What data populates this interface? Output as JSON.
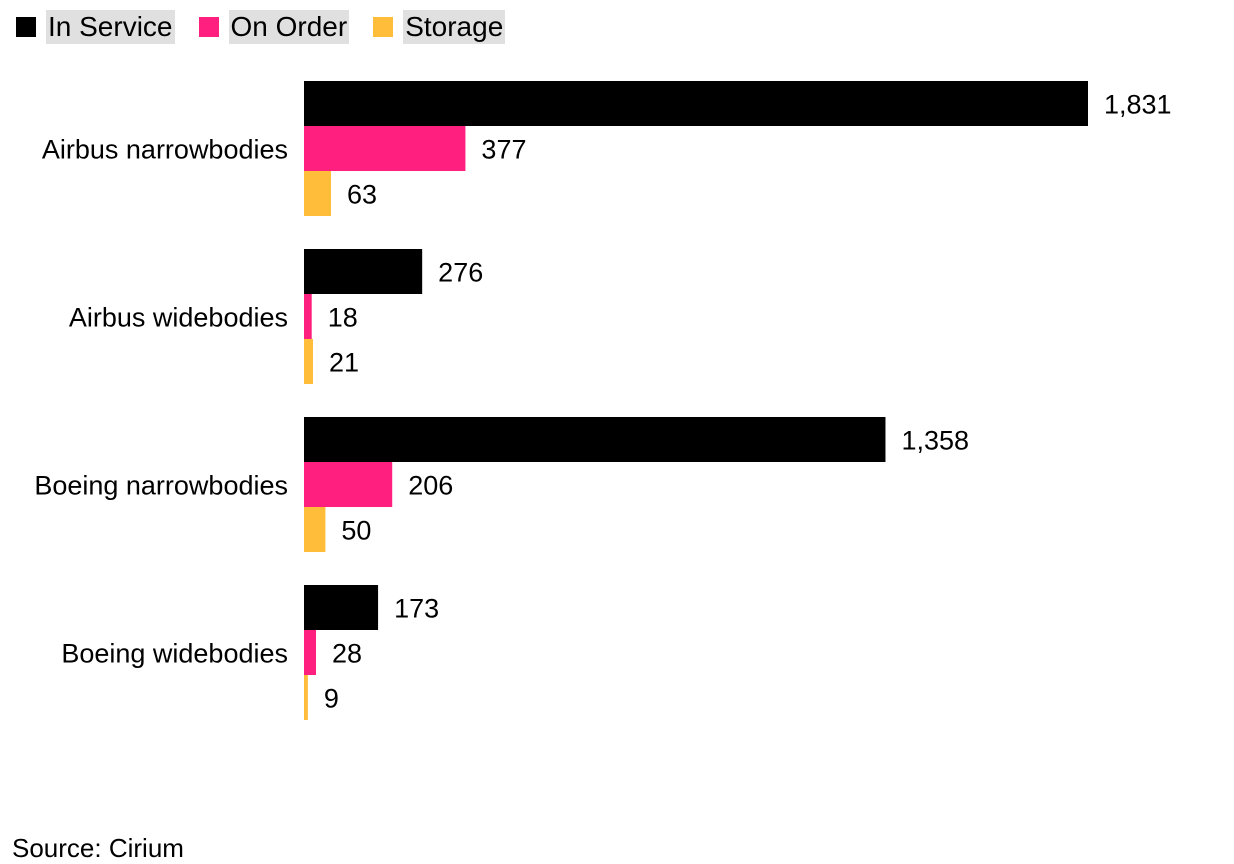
{
  "chart_data": {
    "type": "bar",
    "orientation": "horizontal",
    "categories": [
      "Airbus narrowbodies",
      "Airbus widebodies",
      "Boeing narrowbodies",
      "Boeing widebodies"
    ],
    "series": [
      {
        "name": "In Service",
        "color": "#000000",
        "values": [
          1831,
          276,
          1358,
          173
        ]
      },
      {
        "name": "On Order",
        "color": "#ff1f7e",
        "values": [
          377,
          18,
          206,
          28
        ]
      },
      {
        "name": "Storage",
        "color": "#ffbd39",
        "values": [
          63,
          21,
          50,
          9
        ]
      }
    ],
    "legend_position": "top-left",
    "grid": false,
    "xlim": [
      0,
      1831
    ],
    "data_labels": true
  },
  "source": "Source: Cirium"
}
